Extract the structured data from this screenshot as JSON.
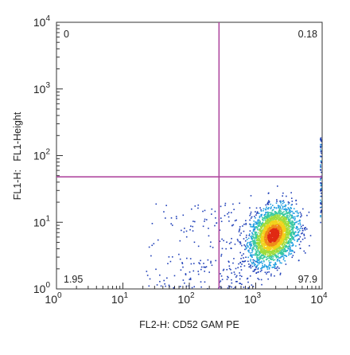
{
  "chart_data": {
    "type": "scatter",
    "xlabel": "FL2-H: CD52 GAM PE",
    "ylabel": "FL1-H:   FL1-Height",
    "xscale": "log",
    "yscale": "log",
    "xlim": [
      1,
      10000
    ],
    "ylim": [
      1,
      10000
    ],
    "x_ticks": [
      {
        "base": "10",
        "exp": "0"
      },
      {
        "base": "10",
        "exp": "1"
      },
      {
        "base": "10",
        "exp": "2"
      },
      {
        "base": "10",
        "exp": "3"
      },
      {
        "base": "10",
        "exp": "4"
      }
    ],
    "y_ticks": [
      {
        "base": "10",
        "exp": "0"
      },
      {
        "base": "10",
        "exp": "1"
      },
      {
        "base": "10",
        "exp": "2"
      },
      {
        "base": "10",
        "exp": "3"
      },
      {
        "base": "10",
        "exp": "4"
      }
    ],
    "grid": false,
    "gates": {
      "x": 280,
      "y": 48,
      "color": "#b04aa0"
    },
    "quadrant_labels": {
      "upper_left": "0",
      "upper_right": "0.18",
      "lower_left": "1.95",
      "lower_right": "97.9"
    },
    "density_colors": [
      "#1f3fb8",
      "#1f9ee0",
      "#38c9a0",
      "#9fdc3c",
      "#f2d21c",
      "#f08a1a",
      "#e02a14"
    ],
    "populations": [
      {
        "name": "main",
        "center_x": 1800,
        "center_y": 6.5,
        "spread_log_x": 0.17,
        "spread_log_y": 0.2,
        "count_fraction": 0.9
      },
      {
        "name": "sparse-low",
        "x_range": [
          20,
          1000
        ],
        "y_range": [
          1,
          20
        ],
        "count_fraction": 0.08
      },
      {
        "name": "right-edge",
        "x": 10000,
        "y_range": [
          8,
          200
        ],
        "count_fraction": 0.02
      }
    ]
  }
}
